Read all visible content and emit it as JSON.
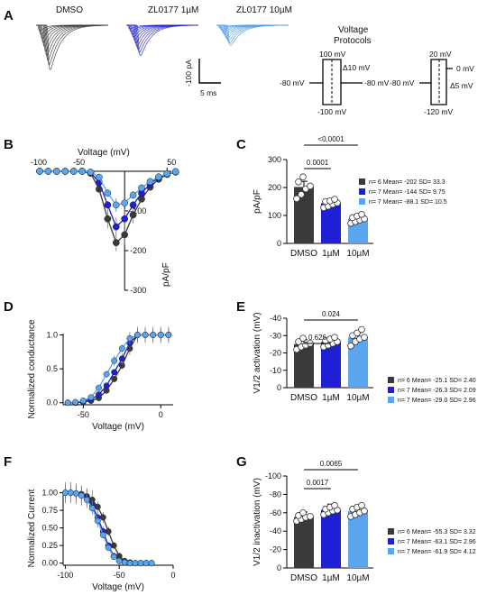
{
  "colors": {
    "black": "#3a3a3a",
    "blue": "#1f1fd6",
    "light": "#5aa6ee",
    "dmso_trace": "#333333",
    "zl1_trace": "#2020c8",
    "zl10_trace": "#4a9ae8"
  },
  "panel_labels": {
    "A": "A",
    "B": "B",
    "C": "C",
    "D": "D",
    "E": "E",
    "F": "F",
    "G": "G"
  },
  "panelA": {
    "traces": [
      "DMSO",
      "ZL0177 1µM",
      "ZL0177 10µM"
    ],
    "scale_current": "-100 pA",
    "scale_time": "5 ms",
    "protocol_title_1": "Voltage",
    "protocol_title_2": "Protocols",
    "p1": {
      "top": "100 mV",
      "step": "Δ10 mV",
      "left": "-80 mV",
      "right": "-80 mV",
      "bottom": "-100 mV"
    },
    "p2": {
      "top": "20 mV",
      "right_top": "0 mV",
      "step": "Δ5 mV",
      "left": "-80 mV",
      "bottom": "-120 mV"
    }
  },
  "chart_data": [
    {
      "panel": "B",
      "type": "line",
      "xlabel": "Voltage (mV)",
      "ylabel": "pA/pF",
      "x_ticks": [
        "-100",
        "-50",
        "50"
      ],
      "y_ticks": [
        "-100",
        "-200",
        "-300"
      ],
      "x": [
        -100,
        -90,
        -80,
        -70,
        -60,
        -50,
        -40,
        -30,
        -20,
        -10,
        0,
        10,
        20,
        30,
        40,
        50,
        60
      ],
      "series": [
        {
          "color": "black",
          "values": [
            0,
            0,
            0,
            0,
            0,
            0,
            -5,
            -45,
            -120,
            -180,
            -160,
            -110,
            -70,
            -40,
            -20,
            -8,
            -2
          ]
        },
        {
          "color": "blue",
          "values": [
            0,
            0,
            0,
            0,
            0,
            0,
            -3,
            -28,
            -85,
            -140,
            -120,
            -85,
            -55,
            -32,
            -16,
            -6,
            -1
          ]
        },
        {
          "color": "light",
          "values": [
            0,
            0,
            0,
            0,
            0,
            0,
            -2,
            -15,
            -55,
            -85,
            -80,
            -60,
            -42,
            -26,
            -14,
            -6,
            -1
          ]
        }
      ]
    },
    {
      "panel": "C",
      "type": "bar",
      "ylabel": "pA/pF",
      "categories": [
        "DMSO",
        "1µM",
        "10µM"
      ],
      "values": [
        202,
        144,
        88.1
      ],
      "ylim": [
        0,
        300
      ],
      "y_ticks": [
        "0",
        "100",
        "200",
        "300"
      ],
      "points": [
        [
          160,
          175,
          195,
          205,
          220,
          238
        ],
        [
          128,
          133,
          140,
          145,
          150,
          152,
          158
        ],
        [
          72,
          78,
          84,
          88,
          92,
          98,
          104
        ]
      ],
      "comparisons": [
        {
          "from": 0,
          "to": 1,
          "label": "0.0001"
        },
        {
          "from": 0,
          "to": 2,
          "label": "<0.0001"
        }
      ],
      "legend": [
        "n= 6 Mean= -202 SD= 33.3",
        "n= 7 Mean= -144 SD= 9.75",
        "n= 7 Mean= -88.1 SD= 10.5"
      ]
    },
    {
      "panel": "D",
      "type": "line",
      "xlabel": "Voltage (mV)",
      "ylabel": "Normalized conductance",
      "x_ticks": [
        "-50",
        "0"
      ],
      "y_ticks": [
        "0.0",
        "0.5",
        "1.0"
      ],
      "x": [
        -60,
        -55,
        -50,
        -45,
        -40,
        -35,
        -30,
        -25,
        -20,
        -15,
        -10,
        -5,
        0,
        5
      ],
      "series": [
        {
          "color": "black",
          "values": [
            0,
            0,
            0.01,
            0.03,
            0.07,
            0.18,
            0.35,
            0.55,
            0.8,
            1,
            1,
            1,
            1,
            1
          ]
        },
        {
          "color": "blue",
          "values": [
            0,
            0,
            0.02,
            0.05,
            0.12,
            0.25,
            0.45,
            0.65,
            0.88,
            1,
            1,
            1,
            1,
            1
          ]
        },
        {
          "color": "light",
          "values": [
            0,
            0.01,
            0.03,
            0.08,
            0.22,
            0.42,
            0.62,
            0.8,
            0.95,
            1,
            1,
            1,
            1,
            1
          ]
        }
      ]
    },
    {
      "panel": "E",
      "type": "bar",
      "ylabel": "V1/2 activation (mV)",
      "categories": [
        "DMSO",
        "1µM",
        "10µM"
      ],
      "values": [
        -25.1,
        -26.3,
        -29.0
      ],
      "ylim": [
        0,
        -40
      ],
      "y_ticks": [
        "0",
        "-10",
        "-20",
        "-30",
        "-40"
      ],
      "points": [
        [
          -22,
          -23.5,
          -24.5,
          -25.5,
          -26.5,
          -28.5
        ],
        [
          -23.5,
          -24.5,
          -25.5,
          -26.5,
          -27,
          -28,
          -29
        ],
        [
          -24,
          -26.5,
          -28,
          -29,
          -30,
          -31.5,
          -33.5
        ]
      ],
      "comparisons": [
        {
          "from": 0,
          "to": 1,
          "label": "0.626"
        },
        {
          "from": 0,
          "to": 2,
          "label": "0.024"
        }
      ],
      "legend": [
        "n= 6 Mean= -25.1 SD= 2.40",
        "n= 7 Mean= -26.3 SD= 2.09",
        "n= 7 Mean=  -29.0 SD= 2.96"
      ]
    },
    {
      "panel": "F",
      "type": "line",
      "xlabel": "Voltage (mV)",
      "ylabel": "Normalized Current",
      "x_ticks": [
        "-100",
        "-50",
        "0"
      ],
      "y_ticks": [
        "0.00",
        "0.25",
        "0.50",
        "0.75",
        "1.00"
      ],
      "x": [
        -100,
        -95,
        -90,
        -85,
        -80,
        -75,
        -70,
        -65,
        -60,
        -55,
        -50,
        -45,
        -40,
        -35,
        -30,
        -25,
        -20
      ],
      "series": [
        {
          "color": "black",
          "values": [
            1,
            1,
            0.99,
            0.98,
            0.95,
            0.9,
            0.8,
            0.65,
            0.45,
            0.25,
            0.1,
            0.03,
            0.01,
            0,
            0,
            0,
            0
          ]
        },
        {
          "color": "blue",
          "values": [
            1,
            1,
            0.99,
            0.97,
            0.92,
            0.82,
            0.65,
            0.45,
            0.25,
            0.1,
            0.03,
            0.01,
            0,
            0,
            0,
            0,
            0
          ]
        },
        {
          "color": "light",
          "values": [
            1,
            1,
            0.99,
            0.96,
            0.9,
            0.78,
            0.6,
            0.4,
            0.22,
            0.09,
            0.03,
            0.01,
            0,
            0,
            0,
            0,
            0
          ]
        }
      ]
    },
    {
      "panel": "G",
      "type": "bar",
      "ylabel": "V1/2 inactivation (mV)",
      "categories": [
        "DMSO",
        "1µM",
        "10µM"
      ],
      "values": [
        -55.3,
        -63.1,
        -61.9
      ],
      "ylim": [
        0,
        -100
      ],
      "y_ticks": [
        "0",
        "-20",
        "-40",
        "-60",
        "-80",
        "-100"
      ],
      "points": [
        [
          -51,
          -53,
          -55,
          -56,
          -57,
          -60
        ],
        [
          -58,
          -60,
          -62,
          -63,
          -64,
          -66,
          -68
        ],
        [
          -56,
          -58,
          -60,
          -62,
          -64,
          -66,
          -68
        ]
      ],
      "comparisons": [
        {
          "from": 0,
          "to": 1,
          "label": "0.0017"
        },
        {
          "from": 0,
          "to": 2,
          "label": "0.0065"
        }
      ],
      "legend": [
        "n= 6 Mean= -55.3 SD= 3.32",
        "n= 7 Mean= -63.1 SD= 2.96",
        "n= 7 Mean= -61.9 SD= 4.12"
      ]
    }
  ]
}
